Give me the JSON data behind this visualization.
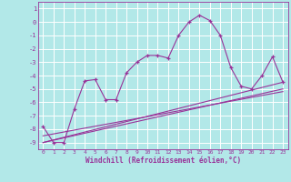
{
  "background_color": "#b2e8e8",
  "grid_color": "#ffffff",
  "line_color": "#993399",
  "xlabel": "Windchill (Refroidissement éolien,°C)",
  "xlim": [
    -0.5,
    23.5
  ],
  "ylim": [
    -9.5,
    1.5
  ],
  "yticks": [
    1,
    0,
    -1,
    -2,
    -3,
    -4,
    -5,
    -6,
    -7,
    -8,
    -9
  ],
  "xticks": [
    0,
    1,
    2,
    3,
    4,
    5,
    6,
    7,
    8,
    9,
    10,
    11,
    12,
    13,
    14,
    15,
    16,
    17,
    18,
    19,
    20,
    21,
    22,
    23
  ],
  "line1_x": [
    0,
    1,
    2,
    3,
    4,
    5,
    6,
    7,
    8,
    9,
    10,
    11,
    12,
    13,
    14,
    15,
    16,
    17,
    18,
    19,
    20,
    21,
    22,
    23
  ],
  "line1_y": [
    -7.8,
    -9.0,
    -9.0,
    -6.5,
    -4.4,
    -4.3,
    -5.8,
    -5.8,
    -3.8,
    -3.0,
    -2.5,
    -2.5,
    -2.7,
    -1.0,
    0.0,
    0.5,
    0.1,
    -1.0,
    -3.4,
    -4.8,
    -5.0,
    -4.0,
    -2.6,
    -4.5
  ],
  "line2_x": [
    0,
    23
  ],
  "line2_y": [
    -9.0,
    -4.5
  ],
  "line3_x": [
    0,
    23
  ],
  "line3_y": [
    -9.0,
    -5.0
  ],
  "line4_x": [
    0,
    23
  ],
  "line4_y": [
    -8.5,
    -5.2
  ]
}
